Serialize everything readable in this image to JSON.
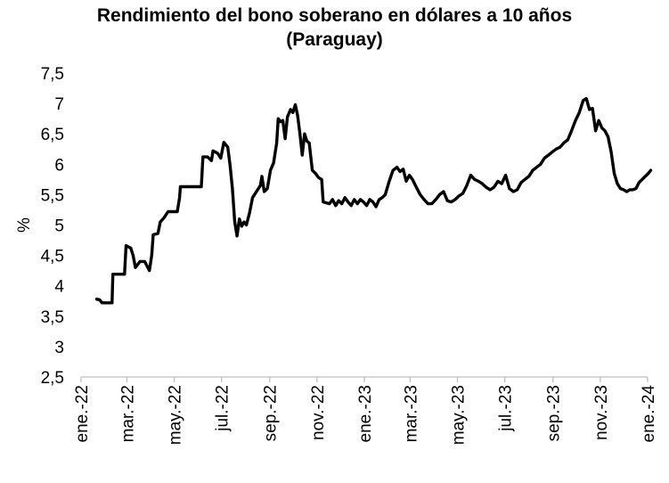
{
  "chart_data": {
    "type": "line",
    "title": "Rendimiento del bono soberano en dólares a 10 años",
    "subtitle": "(Paraguay)",
    "xlabel": "",
    "ylabel": "%",
    "ylim": [
      2.5,
      7.5
    ],
    "yticks": [
      "2,5",
      "3",
      "3,5",
      "4",
      "4,5",
      "5",
      "5,5",
      "6",
      "6,5",
      "7",
      "7,5"
    ],
    "xticks": [
      {
        "label": "ene.-22",
        "date": "2022-01-01"
      },
      {
        "label": "mar.-22",
        "date": "2022-03-01"
      },
      {
        "label": "may.-22",
        "date": "2022-05-01"
      },
      {
        "label": "jul.-22",
        "date": "2022-07-01"
      },
      {
        "label": "sep.-22",
        "date": "2022-09-01"
      },
      {
        "label": "nov.-22",
        "date": "2022-11-01"
      },
      {
        "label": "ene.-23",
        "date": "2023-01-01"
      },
      {
        "label": "mar.-23",
        "date": "2023-03-01"
      },
      {
        "label": "may.-23",
        "date": "2023-05-01"
      },
      {
        "label": "jul.-23",
        "date": "2023-07-01"
      },
      {
        "label": "sep.-23",
        "date": "2023-09-01"
      },
      {
        "label": "nov.-23",
        "date": "2023-11-01"
      },
      {
        "label": "ene.-24",
        "date": "2024-01-01"
      }
    ],
    "grid": false,
    "legend": "none",
    "series": [
      {
        "color": "#000000",
        "points": [
          [
            "2022-01-21",
            3.78
          ],
          [
            "2022-01-25",
            3.77
          ],
          [
            "2022-01-28",
            3.72
          ],
          [
            "2022-02-05",
            3.72
          ],
          [
            "2022-02-10",
            3.72
          ],
          [
            "2022-02-11",
            4.19
          ],
          [
            "2022-02-20",
            4.19
          ],
          [
            "2022-02-26",
            4.19
          ],
          [
            "2022-02-28",
            4.66
          ],
          [
            "2022-03-06",
            4.62
          ],
          [
            "2022-03-09",
            4.5
          ],
          [
            "2022-03-12",
            4.3
          ],
          [
            "2022-03-18",
            4.4
          ],
          [
            "2022-03-24",
            4.4
          ],
          [
            "2022-03-30",
            4.25
          ],
          [
            "2022-04-02",
            4.5
          ],
          [
            "2022-04-04",
            4.84
          ],
          [
            "2022-04-10",
            4.86
          ],
          [
            "2022-04-13",
            5.05
          ],
          [
            "2022-04-18",
            5.12
          ],
          [
            "2022-04-23",
            5.22
          ],
          [
            "2022-04-30",
            5.22
          ],
          [
            "2022-05-05",
            5.22
          ],
          [
            "2022-05-08",
            5.45
          ],
          [
            "2022-05-09",
            5.63
          ],
          [
            "2022-05-20",
            5.63
          ],
          [
            "2022-05-28",
            5.63
          ],
          [
            "2022-06-05",
            5.63
          ],
          [
            "2022-06-07",
            6.12
          ],
          [
            "2022-06-13",
            6.12
          ],
          [
            "2022-06-18",
            6.06
          ],
          [
            "2022-06-20",
            6.22
          ],
          [
            "2022-06-26",
            6.18
          ],
          [
            "2022-06-30",
            6.1
          ],
          [
            "2022-07-04",
            6.36
          ],
          [
            "2022-07-09",
            6.28
          ],
          [
            "2022-07-12",
            5.98
          ],
          [
            "2022-07-15",
            5.6
          ],
          [
            "2022-07-18",
            5.05
          ],
          [
            "2022-07-21",
            4.82
          ],
          [
            "2022-07-24",
            5.1
          ],
          [
            "2022-07-27",
            4.98
          ],
          [
            "2022-07-30",
            5.05
          ],
          [
            "2022-08-02",
            5.0
          ],
          [
            "2022-08-06",
            5.2
          ],
          [
            "2022-08-10",
            5.45
          ],
          [
            "2022-08-15",
            5.55
          ],
          [
            "2022-08-20",
            5.65
          ],
          [
            "2022-08-22",
            5.8
          ],
          [
            "2022-08-25",
            5.55
          ],
          [
            "2022-08-29",
            5.6
          ],
          [
            "2022-09-02",
            5.9
          ],
          [
            "2022-09-06",
            6.02
          ],
          [
            "2022-09-10",
            6.35
          ],
          [
            "2022-09-12",
            6.75
          ],
          [
            "2022-09-15",
            6.7
          ],
          [
            "2022-09-18",
            6.72
          ],
          [
            "2022-09-21",
            6.42
          ],
          [
            "2022-09-24",
            6.78
          ],
          [
            "2022-09-28",
            6.9
          ],
          [
            "2022-10-01",
            6.85
          ],
          [
            "2022-10-04",
            6.98
          ],
          [
            "2022-10-07",
            6.8
          ],
          [
            "2022-10-10",
            6.5
          ],
          [
            "2022-10-13",
            6.15
          ],
          [
            "2022-10-16",
            6.5
          ],
          [
            "2022-10-19",
            6.38
          ],
          [
            "2022-10-22",
            6.35
          ],
          [
            "2022-10-26",
            5.9
          ],
          [
            "2022-10-30",
            5.85
          ],
          [
            "2022-11-03",
            5.78
          ],
          [
            "2022-11-07",
            5.75
          ],
          [
            "2022-11-09",
            5.38
          ],
          [
            "2022-11-14",
            5.36
          ],
          [
            "2022-11-17",
            5.35
          ],
          [
            "2022-11-21",
            5.42
          ],
          [
            "2022-11-25",
            5.32
          ],
          [
            "2022-11-29",
            5.4
          ],
          [
            "2022-12-03",
            5.35
          ],
          [
            "2022-12-07",
            5.45
          ],
          [
            "2022-12-11",
            5.38
          ],
          [
            "2022-12-15",
            5.32
          ],
          [
            "2022-12-19",
            5.42
          ],
          [
            "2022-12-23",
            5.35
          ],
          [
            "2022-12-27",
            5.42
          ],
          [
            "2022-12-31",
            5.38
          ],
          [
            "2023-01-04",
            5.32
          ],
          [
            "2023-01-08",
            5.42
          ],
          [
            "2023-01-12",
            5.38
          ],
          [
            "2023-01-16",
            5.3
          ],
          [
            "2023-01-20",
            5.42
          ],
          [
            "2023-01-24",
            5.45
          ],
          [
            "2023-01-28",
            5.5
          ],
          [
            "2023-02-02",
            5.72
          ],
          [
            "2023-02-07",
            5.9
          ],
          [
            "2023-02-12",
            5.95
          ],
          [
            "2023-02-16",
            5.88
          ],
          [
            "2023-02-20",
            5.92
          ],
          [
            "2023-02-24",
            5.72
          ],
          [
            "2023-02-28",
            5.82
          ],
          [
            "2023-03-04",
            5.75
          ],
          [
            "2023-03-09",
            5.62
          ],
          [
            "2023-03-14",
            5.5
          ],
          [
            "2023-03-19",
            5.42
          ],
          [
            "2023-03-24",
            5.35
          ],
          [
            "2023-03-29",
            5.35
          ],
          [
            "2023-04-03",
            5.42
          ],
          [
            "2023-04-08",
            5.5
          ],
          [
            "2023-04-13",
            5.55
          ],
          [
            "2023-04-18",
            5.4
          ],
          [
            "2023-04-23",
            5.38
          ],
          [
            "2023-04-28",
            5.42
          ],
          [
            "2023-05-03",
            5.48
          ],
          [
            "2023-05-08",
            5.52
          ],
          [
            "2023-05-13",
            5.65
          ],
          [
            "2023-05-18",
            5.82
          ],
          [
            "2023-05-23",
            5.75
          ],
          [
            "2023-05-28",
            5.72
          ],
          [
            "2023-06-02",
            5.68
          ],
          [
            "2023-06-07",
            5.62
          ],
          [
            "2023-06-12",
            5.58
          ],
          [
            "2023-06-17",
            5.62
          ],
          [
            "2023-06-22",
            5.72
          ],
          [
            "2023-06-27",
            5.68
          ],
          [
            "2023-07-02",
            5.82
          ],
          [
            "2023-07-07",
            5.6
          ],
          [
            "2023-07-12",
            5.55
          ],
          [
            "2023-07-17",
            5.58
          ],
          [
            "2023-07-22",
            5.7
          ],
          [
            "2023-07-27",
            5.75
          ],
          [
            "2023-08-01",
            5.8
          ],
          [
            "2023-08-06",
            5.9
          ],
          [
            "2023-08-11",
            5.95
          ],
          [
            "2023-08-16",
            6.0
          ],
          [
            "2023-08-21",
            6.1
          ],
          [
            "2023-08-26",
            6.15
          ],
          [
            "2023-08-31",
            6.2
          ],
          [
            "2023-09-05",
            6.25
          ],
          [
            "2023-09-10",
            6.28
          ],
          [
            "2023-09-15",
            6.35
          ],
          [
            "2023-09-20",
            6.4
          ],
          [
            "2023-09-25",
            6.55
          ],
          [
            "2023-09-30",
            6.72
          ],
          [
            "2023-10-05",
            6.85
          ],
          [
            "2023-10-10",
            7.05
          ],
          [
            "2023-10-14",
            7.08
          ],
          [
            "2023-10-18",
            6.9
          ],
          [
            "2023-10-22",
            6.92
          ],
          [
            "2023-10-26",
            6.55
          ],
          [
            "2023-10-30",
            6.72
          ],
          [
            "2023-11-03",
            6.6
          ],
          [
            "2023-11-07",
            6.55
          ],
          [
            "2023-11-11",
            6.45
          ],
          [
            "2023-11-15",
            6.2
          ],
          [
            "2023-11-19",
            5.85
          ],
          [
            "2023-11-23",
            5.68
          ],
          [
            "2023-11-27",
            5.6
          ],
          [
            "2023-12-01",
            5.58
          ],
          [
            "2023-12-05",
            5.55
          ],
          [
            "2023-12-09",
            5.58
          ],
          [
            "2023-12-13",
            5.58
          ],
          [
            "2023-12-17",
            5.6
          ],
          [
            "2023-12-21",
            5.7
          ],
          [
            "2023-12-25",
            5.75
          ],
          [
            "2023-12-29",
            5.8
          ],
          [
            "2024-01-02",
            5.85
          ],
          [
            "2024-01-05",
            5.9
          ]
        ]
      }
    ]
  }
}
